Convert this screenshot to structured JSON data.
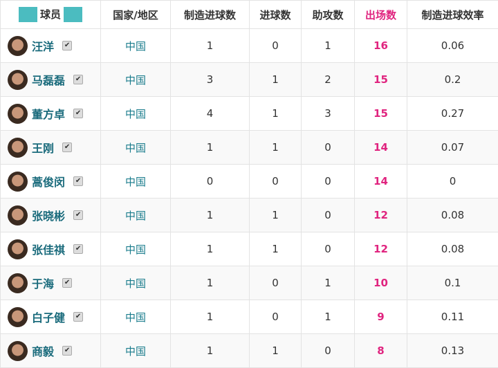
{
  "header": {
    "player": "球员",
    "country": "国家/地区",
    "chances": "制造进球数",
    "goals": "进球数",
    "assists": "助攻数",
    "apps": "出场数",
    "rate": "制造进球效率"
  },
  "accent": "#e0247f",
  "rows": [
    {
      "name": "汪洋",
      "country": "中国",
      "chances": "1",
      "goals": "0",
      "assists": "1",
      "apps": "16",
      "rate": "0.06"
    },
    {
      "name": "马磊磊",
      "country": "中国",
      "chances": "3",
      "goals": "1",
      "assists": "2",
      "apps": "15",
      "rate": "0.2"
    },
    {
      "name": "董方卓",
      "country": "中国",
      "chances": "4",
      "goals": "1",
      "assists": "3",
      "apps": "15",
      "rate": "0.27"
    },
    {
      "name": "王刚",
      "country": "中国",
      "chances": "1",
      "goals": "1",
      "assists": "0",
      "apps": "14",
      "rate": "0.07"
    },
    {
      "name": "蒿俊闵",
      "country": "中国",
      "chances": "0",
      "goals": "0",
      "assists": "0",
      "apps": "14",
      "rate": "0"
    },
    {
      "name": "张晓彬",
      "country": "中国",
      "chances": "1",
      "goals": "1",
      "assists": "0",
      "apps": "12",
      "rate": "0.08"
    },
    {
      "name": "张佳祺",
      "country": "中国",
      "chances": "1",
      "goals": "1",
      "assists": "0",
      "apps": "12",
      "rate": "0.08"
    },
    {
      "name": "于海",
      "country": "中国",
      "chances": "1",
      "goals": "0",
      "assists": "1",
      "apps": "10",
      "rate": "0.1"
    },
    {
      "name": "白子健",
      "country": "中国",
      "chances": "1",
      "goals": "0",
      "assists": "1",
      "apps": "9",
      "rate": "0.11"
    },
    {
      "name": "商毅",
      "country": "中国",
      "chances": "1",
      "goals": "1",
      "assists": "0",
      "apps": "8",
      "rate": "0.13"
    }
  ]
}
